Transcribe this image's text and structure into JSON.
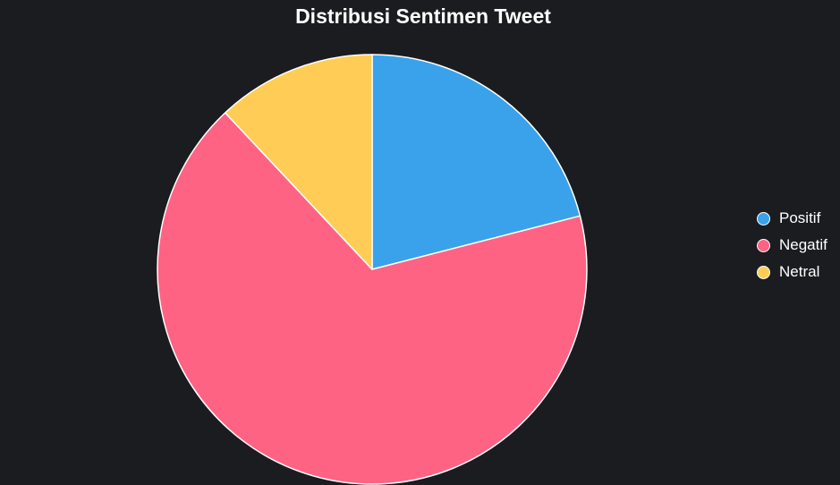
{
  "chart_data": {
    "type": "pie",
    "title": "Distribusi Sentimen Tweet",
    "categories": [
      "Positif",
      "Negatif",
      "Netral"
    ],
    "values": [
      21,
      67,
      12
    ],
    "colors": [
      "#3aa2eb",
      "#ff6384",
      "#ffcd56"
    ],
    "legend_position": "right",
    "slice_border_color": "#ffffff",
    "background": "#1b1c20"
  }
}
